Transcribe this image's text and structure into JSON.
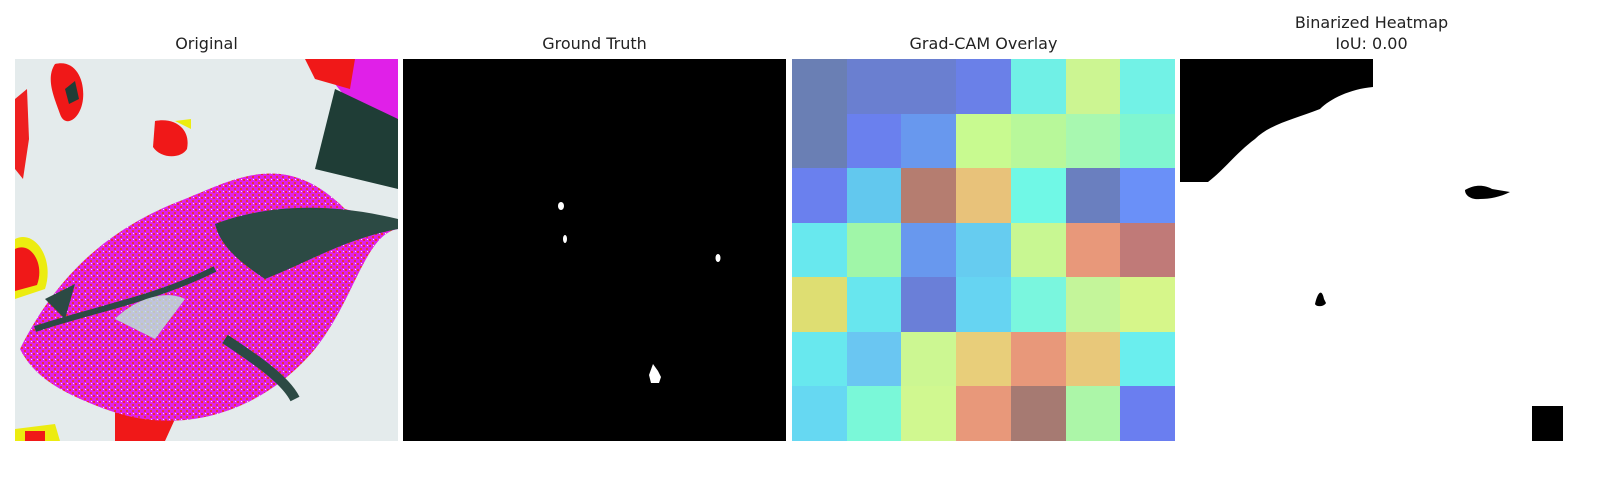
{
  "panels": [
    {
      "title": "Original"
    },
    {
      "title": "Ground Truth"
    },
    {
      "title": "Grad-CAM Overlay"
    },
    {
      "title": "Binarized Heatmap",
      "subtitle": "IoU: 0.00"
    }
  ],
  "gradcam_grid": [
    [
      "#6a7fb4",
      "#6a7fd0",
      "#6a7fd0",
      "#6a80e8",
      "#70f0e6",
      "#ccf592",
      "#72f2e6"
    ],
    [
      "#6a7fb4",
      "#6a80ee",
      "#6898ee",
      "#c8fa90",
      "#b8f89a",
      "#a8f8b0",
      "#80f6d0"
    ],
    [
      "#6a80ee",
      "#62c8ee",
      "#b57d70",
      "#e8c27a",
      "#70f8e6",
      "#6a7fbf",
      "#6a90f8"
    ],
    [
      "#68e8ee",
      "#a0f6a8",
      "#6898ee",
      "#66ccf0",
      "#c8f792",
      "#e8987a",
      "#c07a78"
    ],
    [
      "#dede72",
      "#68e6ee",
      "#6a7fd8",
      "#66d4f2",
      "#7af6de",
      "#c4f59a",
      "#d6f68a"
    ],
    [
      "#68e8ee",
      "#6ac6f2",
      "#ccf792",
      "#e8ce7a",
      "#e8987a",
      "#e8c87a",
      "#6aeeee"
    ],
    [
      "#66d8f2",
      "#7af8d8",
      "#d0f890",
      "#e8987a",
      "#a67a72",
      "#acf6a8",
      "#6a7ef0"
    ]
  ]
}
